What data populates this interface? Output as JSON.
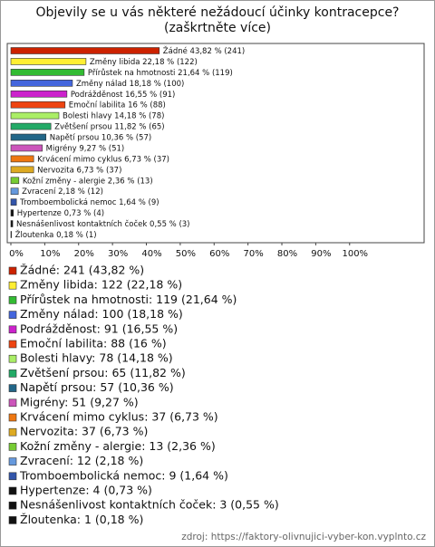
{
  "chart_data": {
    "type": "hbar",
    "title": "Objevily se u vás některé nežádoucí účinky kontracepce? (zaškrtněte více)",
    "categories": [
      "Žádné",
      "Změny libida",
      "Přírůstek na hmotnosti",
      "Změny nálad",
      "Podrážděnost",
      "Emoční labilita",
      "Bolesti hlavy",
      "Zvětšení prsou",
      "Napětí prsou",
      "Migrény",
      "Krvácení mimo cyklus",
      "Nervozita",
      "Kožní změny - alergie",
      "Zvracení",
      "Tromboembolická nemoc",
      "Hypertenze",
      "Nesnášenlivost kontaktních čoček",
      "Žloutenka"
    ],
    "values": [
      43.82,
      22.18,
      21.64,
      18.18,
      16.55,
      16,
      14.18,
      11.82,
      10.36,
      9.27,
      6.73,
      6.73,
      2.36,
      2.18,
      1.64,
      0.73,
      0.55,
      0.18
    ],
    "value_labels": [
      "43,82 % (241)",
      "22,18 % (122)",
      "21,64 % (119)",
      "18,18 % (100)",
      "16,55 % (91)",
      "16 % (88)",
      "14,18 % (78)",
      "11,82 % (65)",
      "10,36 % (57)",
      "9,27 % (51)",
      "6,73 % (37)",
      "6,73 % (37)",
      "2,36 % (13)",
      "2,18 % (12)",
      "1,64 % (9)",
      "0,73 % (4)",
      "0,55 % (3)",
      "0,18 % (1)"
    ],
    "colors": [
      "#cc2200",
      "#ffee33",
      "#33bb33",
      "#4466dd",
      "#cc22cc",
      "#ee4411",
      "#aaee66",
      "#22aa66",
      "#226688",
      "#cc55bb",
      "#ee7711",
      "#ddaa22",
      "#77cc33",
      "#6699dd",
      "#3355aa",
      "#111111",
      "#111111",
      "#111111"
    ],
    "legend": [
      "Žádné: 241 (43,82 %)",
      "Změny libida: 122 (22,18 %)",
      "Přírůstek na hmotnosti: 119 (21,64 %)",
      "Změny nálad: 100 (18,18 %)",
      "Podrážděnost: 91 (16,55 %)",
      "Emoční labilita: 88 (16 %)",
      "Bolesti hlavy: 78 (14,18 %)",
      "Zvětšení prsou: 65 (11,82 %)",
      "Napětí prsou: 57 (10,36 %)",
      "Migrény: 51 (9,27 %)",
      "Krvácení mimo cyklus: 37 (6,73 %)",
      "Nervozita: 37 (6,73 %)",
      "Kožní změny - alergie: 13 (2,36 %)",
      "Zvracení: 12 (2,18 %)",
      "Tromboembolická nemoc: 9 (1,64 %)",
      "Hypertenze: 4 (0,73 %)",
      "Nesnášenlivost kontaktních čoček: 3 (0,55 %)",
      "Žloutenka: 1 (0,18 %)"
    ],
    "xlim": [
      0,
      122
    ],
    "xticks": [
      {
        "value": 0,
        "label": "0%"
      },
      {
        "value": 10,
        "label": "10%"
      },
      {
        "value": 20,
        "label": "20%"
      },
      {
        "value": 30,
        "label": "30%"
      },
      {
        "value": 40,
        "label": "40%"
      },
      {
        "value": 50,
        "label": "50%"
      },
      {
        "value": 60,
        "label": "60%"
      },
      {
        "value": 70,
        "label": "70%"
      },
      {
        "value": 80,
        "label": "80%"
      },
      {
        "value": 90,
        "label": "90%"
      },
      {
        "value": 100,
        "label": "100%"
      }
    ],
    "source": "zdroj: https://faktory-olivnujici-vyber-kon.vyplnto.cz"
  }
}
